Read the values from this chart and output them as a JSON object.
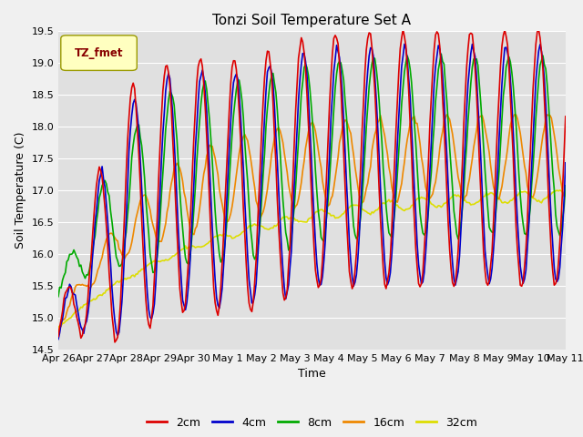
{
  "title": "Tonzi Soil Temperature Set A",
  "xlabel": "Time",
  "ylabel": "Soil Temperature (C)",
  "ylim": [
    14.5,
    19.5
  ],
  "fig_facecolor": "#f0f0f0",
  "axes_facecolor": "#e0e0e0",
  "legend_label": "TZ_fmet",
  "legend_label_color": "#880000",
  "legend_box_facecolor": "#ffffc0",
  "legend_box_edgecolor": "#999900",
  "xtick_labels": [
    "Apr 26",
    "Apr 27",
    "Apr 28",
    "Apr 29",
    "Apr 30",
    "May 1",
    "May 2",
    "May 3",
    "May 4",
    "May 5",
    "May 6",
    "May 7",
    "May 8",
    "May 9",
    "May 10",
    "May 11"
  ],
  "depths": [
    "2cm",
    "4cm",
    "8cm",
    "16cm",
    "32cm"
  ],
  "colors": [
    "#dd0000",
    "#0000cc",
    "#00aa00",
    "#ee8800",
    "#dddd00"
  ],
  "line_width": 1.2,
  "n_points_per_day": 24,
  "n_days": 15,
  "grid_color": "#ffffff",
  "title_fontsize": 11,
  "label_fontsize": 9,
  "tick_fontsize": 8
}
